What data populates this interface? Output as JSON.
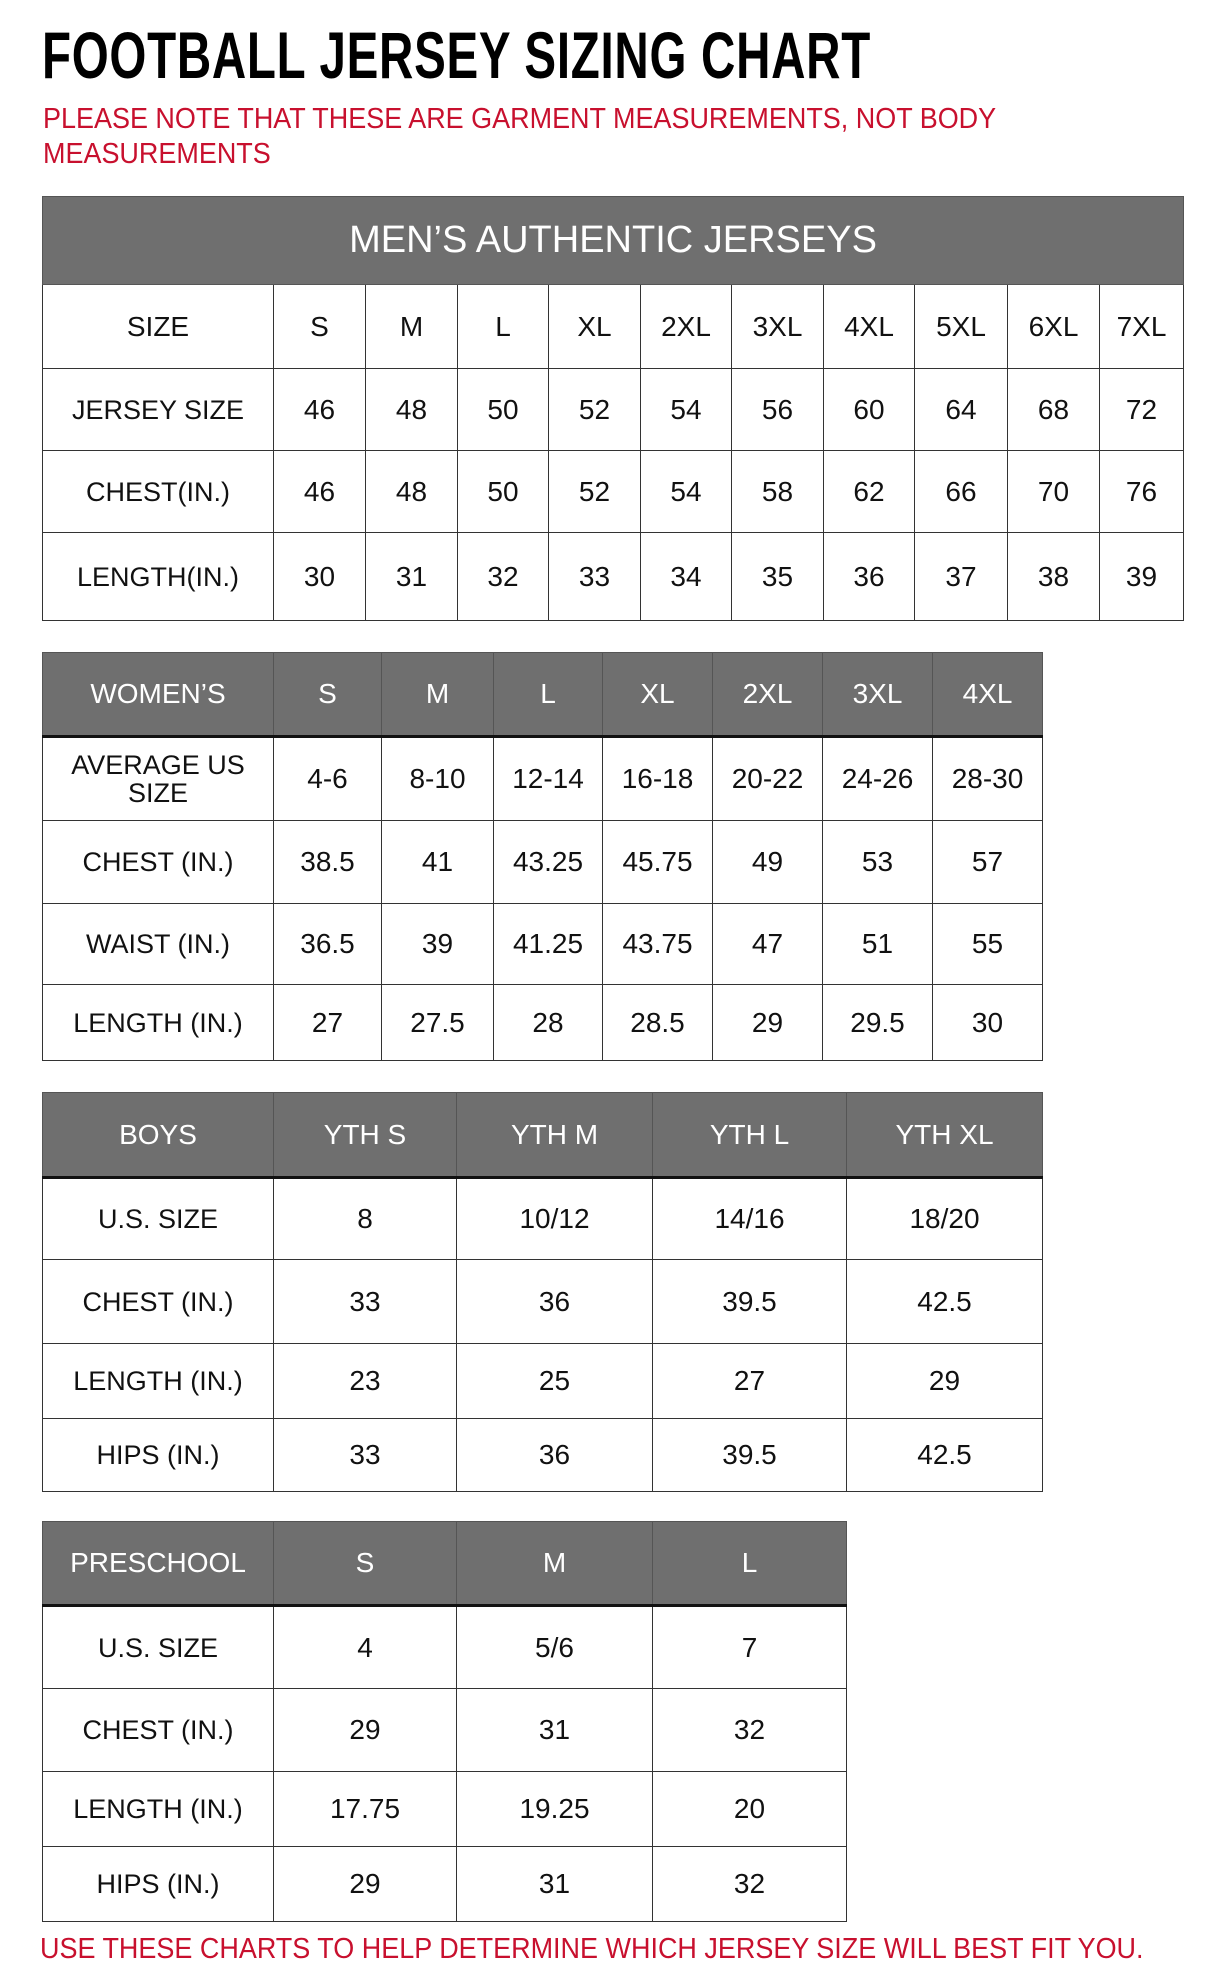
{
  "title": "FOOTBALL JERSEY SIZING CHART",
  "note": "PLEASE NOTE THAT THESE ARE GARMENT MEASUREMENTS, NOT BODY MEASUREMENTS",
  "footer": "USE THESE CHARTS TO HELP DETERMINE WHICH JERSEY SIZE WILL BEST FIT YOU.",
  "colors": {
    "header_fill": "#6f6f6f",
    "note_red": "#c8102e"
  },
  "tables": [
    {
      "id": "mens",
      "band": "MEN’S AUTHENTIC JERSEYS",
      "header": [
        "SIZE",
        "S",
        "M",
        "L",
        "XL",
        "2XL",
        "3XL",
        "4XL",
        "5XL",
        "6XL",
        "7XL"
      ],
      "header_style": "plain",
      "rows": [
        [
          "JERSEY SIZE",
          "46",
          "48",
          "50",
          "52",
          "54",
          "56",
          "60",
          "64",
          "68",
          "72"
        ],
        [
          "CHEST(IN.)",
          "46",
          "48",
          "50",
          "52",
          "54",
          "58",
          "62",
          "66",
          "70",
          "76"
        ],
        [
          "LENGTH(IN.)",
          "30",
          "31",
          "32",
          "33",
          "34",
          "35",
          "36",
          "37",
          "38",
          "39"
        ]
      ]
    },
    {
      "id": "womens",
      "header": [
        "WOMEN’S",
        "S",
        "M",
        "L",
        "XL",
        "2XL",
        "3XL",
        "4XL"
      ],
      "header_style": "gray",
      "rows": [
        [
          "AVERAGE US SIZE",
          "4-6",
          "8-10",
          "12-14",
          "16-18",
          "20-22",
          "24-26",
          "28-30"
        ],
        [
          "CHEST (IN.)",
          "38.5",
          "41",
          "43.25",
          "45.75",
          "49",
          "53",
          "57"
        ],
        [
          "WAIST (IN.)",
          "36.5",
          "39",
          "41.25",
          "43.75",
          "47",
          "51",
          "55"
        ],
        [
          "LENGTH (IN.)",
          "27",
          "27.5",
          "28",
          "28.5",
          "29",
          "29.5",
          "30"
        ]
      ]
    },
    {
      "id": "boys",
      "header": [
        "BOYS",
        "YTH S",
        "YTH M",
        "YTH L",
        "YTH XL"
      ],
      "header_style": "gray",
      "rows": [
        [
          "U.S. SIZE",
          "8",
          "10/12",
          "14/16",
          "18/20"
        ],
        [
          "CHEST (IN.)",
          "33",
          "36",
          "39.5",
          "42.5"
        ],
        [
          "LENGTH (IN.)",
          "23",
          "25",
          "27",
          "29"
        ],
        [
          "HIPS (IN.)",
          "33",
          "36",
          "39.5",
          "42.5"
        ]
      ]
    },
    {
      "id": "preschool",
      "header": [
        "PRESCHOOL",
        "S",
        "M",
        "L"
      ],
      "header_style": "gray",
      "rows": [
        [
          "U.S. SIZE",
          "4",
          "5/6",
          "7"
        ],
        [
          "CHEST (IN.)",
          "29",
          "31",
          "32"
        ],
        [
          "LENGTH (IN.)",
          "17.75",
          "19.25",
          "20"
        ],
        [
          "HIPS (IN.)",
          "29",
          "31",
          "32"
        ]
      ]
    }
  ]
}
